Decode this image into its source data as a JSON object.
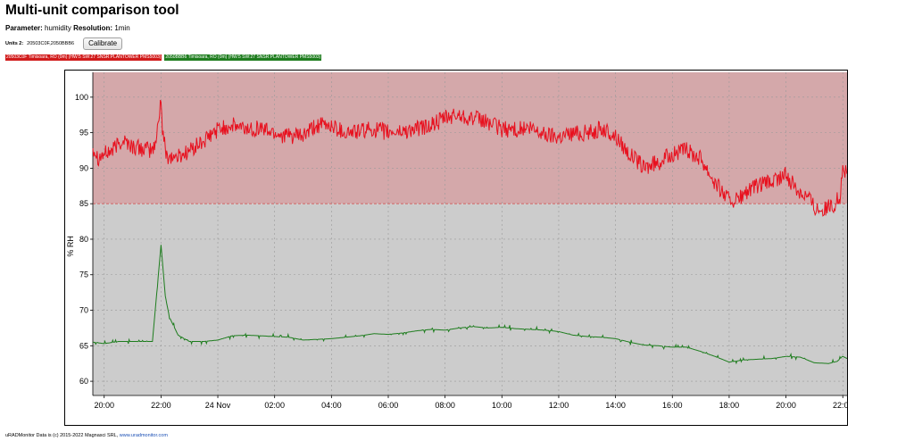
{
  "page": {
    "title": "Multi-unit comparison tool",
    "parameter_label": "Parameter:",
    "parameter_value": "humidity",
    "resolution_label": "Resolution:",
    "resolution_value": "1min",
    "units_label": "Units 2:",
    "units_value": "20503C0F,2050BBB6",
    "calibrate_label": "Calibrate",
    "footer_text": "uRADMonitor Data is (c) 2015-2022 Magnasci SRL,",
    "footer_link": "www.uradmonitor.com"
  },
  "colors": {
    "series_red": "#e8101e",
    "series_green": "#1e7d1e",
    "band_high": "#d4a8aa",
    "band_low": "#cccccc"
  },
  "chart_data": {
    "type": "line",
    "ylabel": "% RH",
    "xlabel": "",
    "ylim": [
      58,
      103.5
    ],
    "yticks": [
      60,
      65,
      70,
      75,
      80,
      85,
      90,
      95,
      100
    ],
    "xlim_hours": [
      19.6,
      46.15
    ],
    "xticks": [
      {
        "h": 20,
        "label": "20:00"
      },
      {
        "h": 22,
        "label": "22:00"
      },
      {
        "h": 24,
        "label": "24 Nov"
      },
      {
        "h": 26,
        "label": "02:00"
      },
      {
        "h": 28,
        "label": "04:00"
      },
      {
        "h": 30,
        "label": "06:00"
      },
      {
        "h": 32,
        "label": "08:00"
      },
      {
        "h": 34,
        "label": "10:00"
      },
      {
        "h": 36,
        "label": "12:00"
      },
      {
        "h": 38,
        "label": "14:00"
      },
      {
        "h": 40,
        "label": "16:00"
      },
      {
        "h": 42,
        "label": "18:00"
      },
      {
        "h": 44,
        "label": "20:00"
      },
      {
        "h": 46,
        "label": "22:00"
      }
    ],
    "threshold": 85,
    "grid": true,
    "legend_position": "top-left",
    "series": [
      {
        "name": "20503C0F Timisoara, RO (0m) (HW:5 SW:27 SNSR:PLANTOWER PMS5003)",
        "color": "red",
        "points": [
          [
            19.6,
            93
          ],
          [
            19.8,
            91.5
          ],
          [
            20.0,
            92
          ],
          [
            20.3,
            92.5
          ],
          [
            20.5,
            93.5
          ],
          [
            20.7,
            94
          ],
          [
            21.0,
            93
          ],
          [
            21.3,
            92.8
          ],
          [
            21.6,
            92.5
          ],
          [
            21.8,
            93
          ],
          [
            22.0,
            100
          ],
          [
            22.05,
            95
          ],
          [
            22.2,
            91.8
          ],
          [
            22.5,
            91.5
          ],
          [
            22.8,
            92
          ],
          [
            23.2,
            93
          ],
          [
            23.6,
            94
          ],
          [
            24.0,
            95.5
          ],
          [
            24.5,
            96
          ],
          [
            25.0,
            95.5
          ],
          [
            25.5,
            95.7
          ],
          [
            26.0,
            95
          ],
          [
            26.5,
            94.5
          ],
          [
            27.0,
            94.5
          ],
          [
            27.5,
            96
          ],
          [
            28.0,
            96
          ],
          [
            28.5,
            95
          ],
          [
            29.0,
            95.2
          ],
          [
            29.5,
            95.5
          ],
          [
            30.0,
            95
          ],
          [
            30.5,
            95.2
          ],
          [
            31.0,
            95.5
          ],
          [
            31.5,
            96
          ],
          [
            32.0,
            97
          ],
          [
            32.5,
            97.5
          ],
          [
            33.0,
            97
          ],
          [
            33.5,
            96.5
          ],
          [
            34.0,
            95.5
          ],
          [
            34.5,
            95.5
          ],
          [
            35.0,
            95.5
          ],
          [
            35.5,
            94.8
          ],
          [
            36.0,
            94.5
          ],
          [
            36.5,
            95
          ],
          [
            37.0,
            95
          ],
          [
            37.5,
            95.5
          ],
          [
            38.0,
            94.5
          ],
          [
            38.5,
            92
          ],
          [
            39.0,
            90
          ],
          [
            39.5,
            90.8
          ],
          [
            40.0,
            92
          ],
          [
            40.5,
            92.5
          ],
          [
            41.0,
            91.5
          ],
          [
            41.5,
            88
          ],
          [
            42.0,
            85.5
          ],
          [
            42.3,
            85.5
          ],
          [
            42.6,
            86.5
          ],
          [
            43.0,
            87.5
          ],
          [
            43.5,
            88
          ],
          [
            44.0,
            89
          ],
          [
            44.4,
            87
          ],
          [
            44.8,
            86
          ],
          [
            45.0,
            84.5
          ],
          [
            45.3,
            84.2
          ],
          [
            45.6,
            84.5
          ],
          [
            45.9,
            86
          ],
          [
            46.0,
            90
          ],
          [
            46.15,
            89.2
          ]
        ]
      },
      {
        "name": "2050BBB6 Timisoara, RO (0m) (HW:5 SW:27 SNSR:PLANTOWER PMS5003)",
        "color": "green",
        "points": [
          [
            19.6,
            65.5
          ],
          [
            20.0,
            65.3
          ],
          [
            20.5,
            65.6
          ],
          [
            21.0,
            65.6
          ],
          [
            21.5,
            65.6
          ],
          [
            21.7,
            65.6
          ],
          [
            22.0,
            79.2
          ],
          [
            22.15,
            72
          ],
          [
            22.3,
            69
          ],
          [
            22.6,
            66.5
          ],
          [
            23.0,
            65.6
          ],
          [
            23.5,
            65.6
          ],
          [
            24.0,
            65.8
          ],
          [
            24.5,
            66.4
          ],
          [
            25.0,
            66.5
          ],
          [
            25.5,
            66.4
          ],
          [
            26.0,
            66.3
          ],
          [
            26.5,
            66.2
          ],
          [
            27.0,
            65.8
          ],
          [
            27.5,
            65.9
          ],
          [
            28.0,
            66
          ],
          [
            28.5,
            66.2
          ],
          [
            29.0,
            66.4
          ],
          [
            29.5,
            66.7
          ],
          [
            30.0,
            66.6
          ],
          [
            30.5,
            66.8
          ],
          [
            31.0,
            67.1
          ],
          [
            31.5,
            67.3
          ],
          [
            32.0,
            67.2
          ],
          [
            32.5,
            67.5
          ],
          [
            33.0,
            67.7
          ],
          [
            33.5,
            67.5
          ],
          [
            34.0,
            67.6
          ],
          [
            34.5,
            67.4
          ],
          [
            35.0,
            67.3
          ],
          [
            35.5,
            67.2
          ],
          [
            36.0,
            67
          ],
          [
            36.5,
            66.5
          ],
          [
            37.0,
            66.3
          ],
          [
            37.5,
            66.2
          ],
          [
            38.0,
            66
          ],
          [
            38.5,
            65.5
          ],
          [
            39.0,
            65.1
          ],
          [
            39.5,
            65
          ],
          [
            40.0,
            64.8
          ],
          [
            40.5,
            64.8
          ],
          [
            41.0,
            64.2
          ],
          [
            41.5,
            63.5
          ],
          [
            42.0,
            62.7
          ],
          [
            42.5,
            63
          ],
          [
            43.0,
            63.1
          ],
          [
            43.5,
            63.2
          ],
          [
            44.0,
            63.5
          ],
          [
            44.5,
            63.4
          ],
          [
            45.0,
            62.6
          ],
          [
            45.5,
            62.5
          ],
          [
            45.8,
            62.8
          ],
          [
            46.0,
            63.5
          ],
          [
            46.15,
            63.2
          ]
        ]
      }
    ]
  }
}
